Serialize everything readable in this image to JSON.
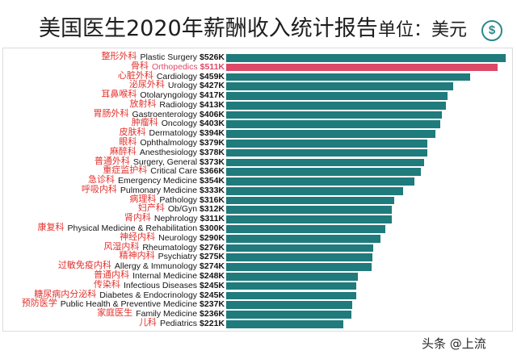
{
  "header": {
    "unit_icon": "dollar-circle-icon",
    "unit_icon_glyph": "$",
    "accent_color": "#2a8a8c"
  },
  "chart_data": {
    "type": "bar",
    "orientation": "horizontal",
    "title": "美国医生2020年薪酬收入统计报告",
    "unit_label": "单位：美元",
    "xlabel": "",
    "ylabel": "",
    "grid": false,
    "legend": "none",
    "categories": [
      "Plastic Surgery",
      "Orthopedics",
      "Cardiology",
      "Urology",
      "Otolaryngology",
      "Radiology",
      "Gastroenterology",
      "Oncology",
      "Dermatology",
      "Ophthalmology",
      "Anesthesiology",
      "Surgery, General",
      "Critical Care",
      "Emergency Medicine",
      "Pulmonary Medicine",
      "Pathology",
      "Ob/Gyn",
      "Nephrology",
      "Physical Medicine & Rehabilitation",
      "Neurology",
      "Rheumatology",
      "Psychiatry",
      "Allergy & Immunology",
      "Internal Medicine",
      "Infectious Diseases",
      "Diabetes & Endocrinology",
      "Public Health & Preventive Medicine",
      "Family Medicine",
      "Pediatrics"
    ],
    "category_labels_zh": [
      "整形外科",
      "骨科",
      "心脏外科",
      "泌尿外科",
      "耳鼻喉科",
      "放射科",
      "胃肠外科",
      "肿瘤科",
      "皮肤科",
      "眼科",
      "麻醉科",
      "普通外科",
      "重症监护科",
      "急诊科",
      "呼吸内科",
      "病理科",
      "妇产科",
      "肾内科",
      "康复科",
      "神经内科",
      "风湿内科",
      "精神内科",
      "过敏免疫内科",
      "普通内科",
      "传染科",
      "糖尿病内分泌科",
      "预防医学",
      "家庭医生",
      "儿科"
    ],
    "values": [
      526,
      511,
      459,
      427,
      417,
      413,
      406,
      403,
      394,
      379,
      378,
      373,
      366,
      354,
      333,
      316,
      312,
      311,
      300,
      290,
      276,
      275,
      274,
      248,
      245,
      245,
      237,
      236,
      221
    ],
    "value_labels": [
      "$526K",
      "$511K",
      "$459K",
      "$427K",
      "$417K",
      "$413K",
      "$406K",
      "$403K",
      "$394K",
      "$379K",
      "$378K",
      "$373K",
      "$366K",
      "$354K",
      "$333K",
      "$316K",
      "$312K",
      "$311K",
      "$300K",
      "$290K",
      "$276K",
      "$275K",
      "$274K",
      "$248K",
      "$245K",
      "$245K",
      "$237K",
      "$236K",
      "$221K"
    ],
    "bar_color": "#1f7b7c",
    "highlight": {
      "index": 1,
      "color": "#dc4a67"
    },
    "label_color_zh": "#e2312d"
  },
  "watermark": "头条 @上流"
}
